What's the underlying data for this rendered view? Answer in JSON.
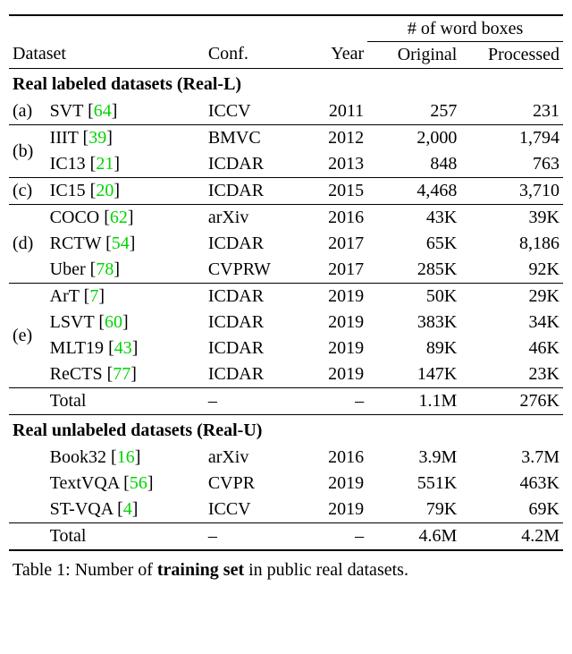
{
  "header": {
    "wordboxes": "# of word boxes",
    "dataset": "Dataset",
    "conf": "Conf.",
    "year": "Year",
    "original": "Original",
    "processed": "Processed"
  },
  "section_labeled": "Real labeled datasets (Real-L)",
  "section_unlabeled": "Real unlabeled datasets (Real-U)",
  "rows_labeled": [
    {
      "tag": "(a)",
      "name": "SVT",
      "ref": "64",
      "conf": "ICCV",
      "year": "2011",
      "orig": "257",
      "proc": "231"
    },
    {
      "tag": "(b)",
      "name": "IIIT",
      "ref": "39",
      "conf": "BMVC",
      "year": "2012",
      "orig": "2,000",
      "proc": "1,794"
    },
    {
      "tag": "",
      "name": "IC13",
      "ref": "21",
      "conf": "ICDAR",
      "year": "2013",
      "orig": "848",
      "proc": "763"
    },
    {
      "tag": "(c)",
      "name": "IC15",
      "ref": "20",
      "conf": "ICDAR",
      "year": "2015",
      "orig": "4,468",
      "proc": "3,710"
    },
    {
      "tag": "",
      "name": "COCO",
      "ref": "62",
      "conf": "arXiv",
      "year": "2016",
      "orig": "43K",
      "proc": "39K"
    },
    {
      "tag": "(d)",
      "name": "RCTW",
      "ref": "54",
      "conf": "ICDAR",
      "year": "2017",
      "orig": "65K",
      "proc": "8,186"
    },
    {
      "tag": "",
      "name": "Uber",
      "ref": "78",
      "conf": "CVPRW",
      "year": "2017",
      "orig": "285K",
      "proc": "92K"
    },
    {
      "tag": "",
      "name": "ArT",
      "ref": "7",
      "conf": "ICDAR",
      "year": "2019",
      "orig": "50K",
      "proc": "29K"
    },
    {
      "tag": "(e)",
      "name": "LSVT",
      "ref": "60",
      "conf": "ICDAR",
      "year": "2019",
      "orig": "383K",
      "proc": "34K"
    },
    {
      "tag": "",
      "name": "MLT19",
      "ref": "43",
      "conf": "ICDAR",
      "year": "2019",
      "orig": "89K",
      "proc": "46K"
    },
    {
      "tag": "",
      "name": "ReCTS",
      "ref": "77",
      "conf": "ICDAR",
      "year": "2019",
      "orig": "147K",
      "proc": "23K"
    }
  ],
  "total_labeled": {
    "tag": "",
    "name": "Total",
    "conf": "–",
    "year": "–",
    "orig": "1.1M",
    "proc": "276K"
  },
  "rows_unlabeled": [
    {
      "tag": "",
      "name": "Book32",
      "ref": "16",
      "conf": "arXiv",
      "year": "2016",
      "orig": "3.9M",
      "proc": "3.7M"
    },
    {
      "tag": "",
      "name": "TextVQA",
      "ref": "56",
      "conf": "CVPR",
      "year": "2019",
      "orig": "551K",
      "proc": "463K"
    },
    {
      "tag": "",
      "name": "ST-VQA",
      "ref": "4",
      "conf": "ICCV",
      "year": "2019",
      "orig": "79K",
      "proc": "69K"
    }
  ],
  "total_unlabeled": {
    "tag": "",
    "name": "Total",
    "conf": "–",
    "year": "–",
    "orig": "4.6M",
    "proc": "4.2M"
  },
  "caption_prefix": "Table 1: Number of ",
  "caption_bold": "training set",
  "caption_suffix": " in public real datasets.",
  "cite_color": "#00d400"
}
